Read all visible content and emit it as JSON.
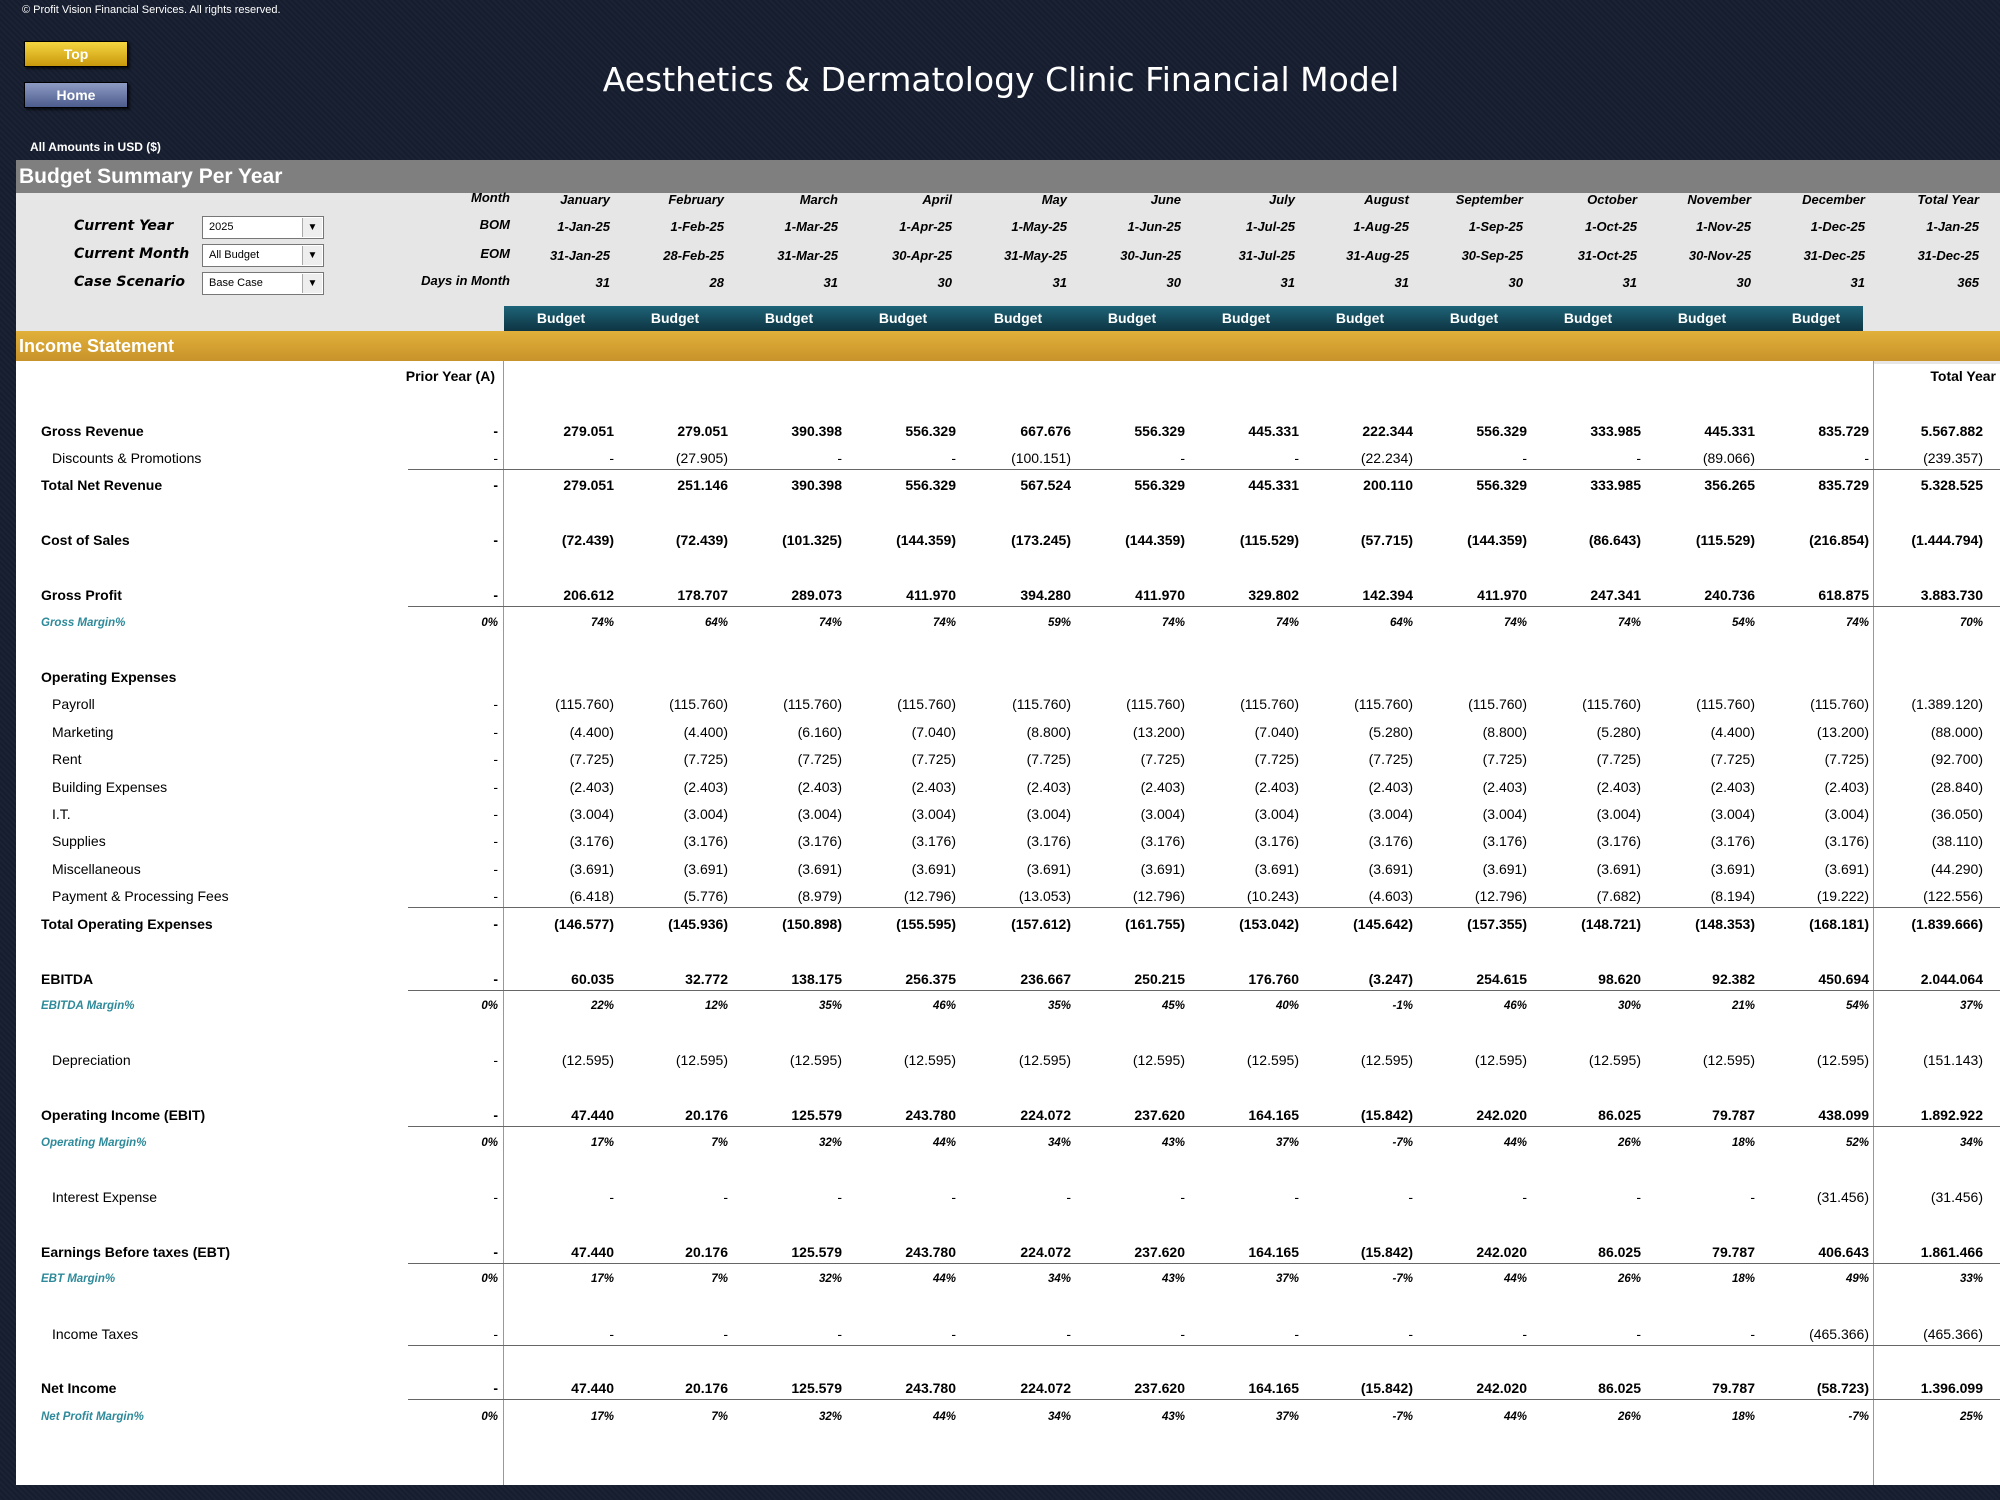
{
  "copyright": "© Profit Vision Financial Services. All rights reserved.",
  "nav": {
    "top": "Top",
    "home": "Home"
  },
  "title": "Aesthetics & Dermatology Clinic Financial Model",
  "amounts_note": "All Amounts in  USD ($)",
  "summary_title": "Budget Summary Per Year",
  "controls": [
    {
      "label": "Current Year",
      "value": "2025"
    },
    {
      "label": "Current Month",
      "value": "All Budget"
    },
    {
      "label": "Case Scenario",
      "value": "Base Case"
    }
  ],
  "header_labels": [
    "Month",
    "BOM",
    "EOM",
    "Days in Month"
  ],
  "months": [
    {
      "name": "January",
      "bom": "1-Jan-25",
      "eom": "31-Jan-25",
      "days": "31",
      "type": "Budget"
    },
    {
      "name": "February",
      "bom": "1-Feb-25",
      "eom": "28-Feb-25",
      "days": "28",
      "type": "Budget"
    },
    {
      "name": "March",
      "bom": "1-Mar-25",
      "eom": "31-Mar-25",
      "days": "31",
      "type": "Budget"
    },
    {
      "name": "April",
      "bom": "1-Apr-25",
      "eom": "30-Apr-25",
      "days": "30",
      "type": "Budget"
    },
    {
      "name": "May",
      "bom": "1-May-25",
      "eom": "31-May-25",
      "days": "31",
      "type": "Budget"
    },
    {
      "name": "June",
      "bom": "1-Jun-25",
      "eom": "30-Jun-25",
      "days": "30",
      "type": "Budget"
    },
    {
      "name": "July",
      "bom": "1-Jul-25",
      "eom": "31-Jul-25",
      "days": "31",
      "type": "Budget"
    },
    {
      "name": "August",
      "bom": "1-Aug-25",
      "eom": "31-Aug-25",
      "days": "31",
      "type": "Budget"
    },
    {
      "name": "September",
      "bom": "1-Sep-25",
      "eom": "30-Sep-25",
      "days": "30",
      "type": "Budget"
    },
    {
      "name": "October",
      "bom": "1-Oct-25",
      "eom": "31-Oct-25",
      "days": "31",
      "type": "Budget"
    },
    {
      "name": "November",
      "bom": "1-Nov-25",
      "eom": "30-Nov-25",
      "days": "30",
      "type": "Budget"
    },
    {
      "name": "December",
      "bom": "1-Dec-25",
      "eom": "31-Dec-25",
      "days": "31",
      "type": "Budget"
    }
  ],
  "total_header": {
    "name": "Total Year",
    "bom": "1-Jan-25",
    "eom": "31-Dec-25",
    "days": "365"
  },
  "income_statement_title": "Income Statement",
  "prior_year_label": "Prior Year (A)",
  "total_year_label": "Total Year",
  "rows": [
    {
      "label": "Gross Revenue",
      "style": "bold",
      "prior": "-",
      "values": [
        "279.051",
        "279.051",
        "390.398",
        "556.329",
        "667.676",
        "556.329",
        "445.331",
        "222.344",
        "556.329",
        "333.985",
        "445.331",
        "835.729"
      ],
      "total": "5.567.882"
    },
    {
      "label": "Discounts & Promotions",
      "style": "indent",
      "prior": "-",
      "values": [
        "-",
        "(27.905)",
        "-",
        "-",
        "(100.151)",
        "-",
        "-",
        "(22.234)",
        "-",
        "-",
        "(89.066)",
        "-"
      ],
      "total": "(239.357)",
      "rule_below": true
    },
    {
      "label": "Total Net Revenue",
      "style": "bold",
      "prior": "-",
      "values": [
        "279.051",
        "251.146",
        "390.398",
        "556.329",
        "567.524",
        "556.329",
        "445.331",
        "200.110",
        "556.329",
        "333.985",
        "356.265",
        "835.729"
      ],
      "total": "5.328.525"
    },
    {
      "label": "Cost of Sales",
      "style": "bold",
      "prior": "-",
      "values": [
        "(72.439)",
        "(72.439)",
        "(101.325)",
        "(144.359)",
        "(173.245)",
        "(144.359)",
        "(115.529)",
        "(57.715)",
        "(144.359)",
        "(86.643)",
        "(115.529)",
        "(216.854)"
      ],
      "total": "(1.444.794)",
      "total_bold": true
    },
    {
      "label": "Gross Profit",
      "style": "bold",
      "prior": "-",
      "values": [
        "206.612",
        "178.707",
        "289.073",
        "411.970",
        "394.280",
        "411.970",
        "329.802",
        "142.394",
        "411.970",
        "247.341",
        "240.736",
        "618.875"
      ],
      "total": "3.883.730",
      "rule_below": true
    },
    {
      "label": "Gross Margin%",
      "style": "margin",
      "prior": "0%",
      "values": [
        "74%",
        "64%",
        "74%",
        "74%",
        "59%",
        "74%",
        "74%",
        "64%",
        "74%",
        "74%",
        "54%",
        "74%"
      ],
      "total": "70%"
    },
    {
      "label": "Operating Expenses",
      "style": "bold",
      "prior": "",
      "values": [
        "",
        "",
        "",
        "",
        "",
        "",
        "",
        "",
        "",
        "",
        "",
        ""
      ],
      "total": ""
    },
    {
      "label": "Payroll",
      "style": "indent",
      "prior": "-",
      "values": [
        "(115.760)",
        "(115.760)",
        "(115.760)",
        "(115.760)",
        "(115.760)",
        "(115.760)",
        "(115.760)",
        "(115.760)",
        "(115.760)",
        "(115.760)",
        "(115.760)",
        "(115.760)"
      ],
      "total": "(1.389.120)"
    },
    {
      "label": "Marketing",
      "style": "indent",
      "prior": "-",
      "values": [
        "(4.400)",
        "(4.400)",
        "(6.160)",
        "(7.040)",
        "(8.800)",
        "(13.200)",
        "(7.040)",
        "(5.280)",
        "(8.800)",
        "(5.280)",
        "(4.400)",
        "(13.200)"
      ],
      "total": "(88.000)"
    },
    {
      "label": "Rent",
      "style": "indent",
      "prior": "-",
      "values": [
        "(7.725)",
        "(7.725)",
        "(7.725)",
        "(7.725)",
        "(7.725)",
        "(7.725)",
        "(7.725)",
        "(7.725)",
        "(7.725)",
        "(7.725)",
        "(7.725)",
        "(7.725)"
      ],
      "total": "(92.700)"
    },
    {
      "label": "Building Expenses",
      "style": "indent",
      "prior": "-",
      "values": [
        "(2.403)",
        "(2.403)",
        "(2.403)",
        "(2.403)",
        "(2.403)",
        "(2.403)",
        "(2.403)",
        "(2.403)",
        "(2.403)",
        "(2.403)",
        "(2.403)",
        "(2.403)"
      ],
      "total": "(28.840)"
    },
    {
      "label": "I.T.",
      "style": "indent",
      "prior": "-",
      "values": [
        "(3.004)",
        "(3.004)",
        "(3.004)",
        "(3.004)",
        "(3.004)",
        "(3.004)",
        "(3.004)",
        "(3.004)",
        "(3.004)",
        "(3.004)",
        "(3.004)",
        "(3.004)"
      ],
      "total": "(36.050)"
    },
    {
      "label": "Supplies",
      "style": "indent",
      "prior": "-",
      "values": [
        "(3.176)",
        "(3.176)",
        "(3.176)",
        "(3.176)",
        "(3.176)",
        "(3.176)",
        "(3.176)",
        "(3.176)",
        "(3.176)",
        "(3.176)",
        "(3.176)",
        "(3.176)"
      ],
      "total": "(38.110)"
    },
    {
      "label": "Miscellaneous",
      "style": "indent",
      "prior": "-",
      "values": [
        "(3.691)",
        "(3.691)",
        "(3.691)",
        "(3.691)",
        "(3.691)",
        "(3.691)",
        "(3.691)",
        "(3.691)",
        "(3.691)",
        "(3.691)",
        "(3.691)",
        "(3.691)"
      ],
      "total": "(44.290)"
    },
    {
      "label": "Payment & Processing Fees",
      "style": "indent",
      "prior": "-",
      "values": [
        "(6.418)",
        "(5.776)",
        "(8.979)",
        "(12.796)",
        "(13.053)",
        "(12.796)",
        "(10.243)",
        "(4.603)",
        "(12.796)",
        "(7.682)",
        "(8.194)",
        "(19.222)"
      ],
      "total": "(122.556)",
      "rule_below": true
    },
    {
      "label": "Total Operating Expenses",
      "style": "bold",
      "prior": "-",
      "values": [
        "(146.577)",
        "(145.936)",
        "(150.898)",
        "(155.595)",
        "(157.612)",
        "(161.755)",
        "(153.042)",
        "(145.642)",
        "(157.355)",
        "(148.721)",
        "(148.353)",
        "(168.181)"
      ],
      "total": "(1.839.666)"
    },
    {
      "label": "EBITDA",
      "style": "bold",
      "prior": "-",
      "values": [
        "60.035",
        "32.772",
        "138.175",
        "256.375",
        "236.667",
        "250.215",
        "176.760",
        "(3.247)",
        "254.615",
        "98.620",
        "92.382",
        "450.694"
      ],
      "total": "2.044.064",
      "rule_below": true
    },
    {
      "label": "EBITDA Margin%",
      "style": "margin",
      "prior": "0%",
      "values": [
        "22%",
        "12%",
        "35%",
        "46%",
        "35%",
        "45%",
        "40%",
        "-1%",
        "46%",
        "30%",
        "21%",
        "54%"
      ],
      "total": "37%"
    },
    {
      "label": "Depreciation",
      "style": "indent",
      "prior": "-",
      "values": [
        "(12.595)",
        "(12.595)",
        "(12.595)",
        "(12.595)",
        "(12.595)",
        "(12.595)",
        "(12.595)",
        "(12.595)",
        "(12.595)",
        "(12.595)",
        "(12.595)",
        "(12.595)"
      ],
      "total": "(151.143)"
    },
    {
      "label": "Operating Income (EBIT)",
      "style": "bold",
      "prior": "-",
      "values": [
        "47.440",
        "20.176",
        "125.579",
        "243.780",
        "224.072",
        "237.620",
        "164.165",
        "(15.842)",
        "242.020",
        "86.025",
        "79.787",
        "438.099"
      ],
      "total": "1.892.922",
      "rule_below": true
    },
    {
      "label": "Operating Margin%",
      "style": "margin",
      "prior": "0%",
      "values": [
        "17%",
        "7%",
        "32%",
        "44%",
        "34%",
        "43%",
        "37%",
        "-7%",
        "44%",
        "26%",
        "18%",
        "52%"
      ],
      "total": "34%"
    },
    {
      "label": "Interest Expense",
      "style": "indent",
      "prior": "-",
      "values": [
        "-",
        "-",
        "-",
        "-",
        "-",
        "-",
        "-",
        "-",
        "-",
        "-",
        "-",
        "(31.456)"
      ],
      "total": "(31.456)"
    },
    {
      "label": "Earnings Before taxes (EBT)",
      "style": "bold",
      "prior": "-",
      "values": [
        "47.440",
        "20.176",
        "125.579",
        "243.780",
        "224.072",
        "237.620",
        "164.165",
        "(15.842)",
        "242.020",
        "86.025",
        "79.787",
        "406.643"
      ],
      "total": "1.861.466",
      "rule_below": true
    },
    {
      "label": "EBT Margin%",
      "style": "margin",
      "prior": "0%",
      "values": [
        "17%",
        "7%",
        "32%",
        "44%",
        "34%",
        "43%",
        "37%",
        "-7%",
        "44%",
        "26%",
        "18%",
        "49%"
      ],
      "total": "33%"
    },
    {
      "label": "Income Taxes",
      "style": "indent",
      "prior": "-",
      "values": [
        "-",
        "-",
        "-",
        "-",
        "-",
        "-",
        "-",
        "-",
        "-",
        "-",
        "-",
        "(465.366)"
      ],
      "total": "(465.366)",
      "rule_below": true
    },
    {
      "label": "Net Income",
      "style": "bold",
      "prior": "-",
      "values": [
        "47.440",
        "20.176",
        "125.579",
        "243.780",
        "224.072",
        "237.620",
        "164.165",
        "(15.842)",
        "242.020",
        "86.025",
        "79.787",
        "(58.723)"
      ],
      "total": "1.396.099",
      "rule_below": true
    },
    {
      "label": "Net Profit Margin%",
      "style": "margin",
      "prior": "0%",
      "values": [
        "17%",
        "7%",
        "32%",
        "44%",
        "34%",
        "43%",
        "37%",
        "-7%",
        "44%",
        "26%",
        "18%",
        "-7%"
      ],
      "total": "25%"
    }
  ]
}
